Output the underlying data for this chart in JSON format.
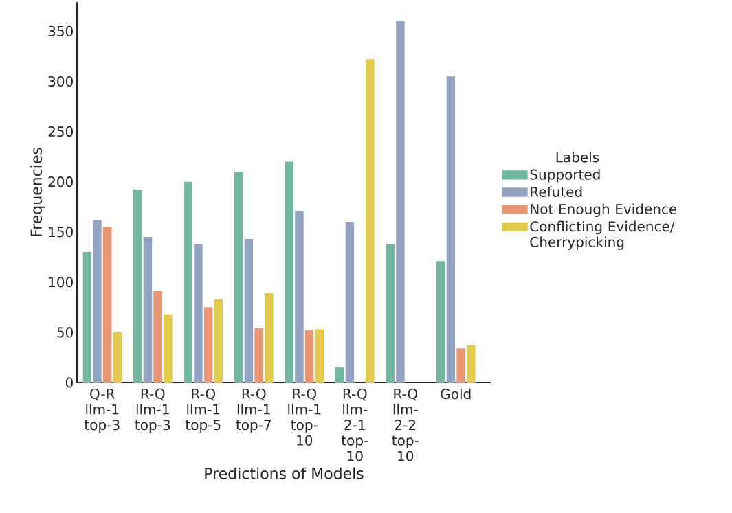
{
  "chart_data": {
    "type": "bar",
    "xlabel": "Predictions of Models",
    "ylabel": "Frequencies",
    "legend_title": "Labels",
    "legend": "right",
    "categories": [
      "Q-R llm-1 top-3",
      "R-Q llm-1 top-3",
      "R-Q llm-1 top-5",
      "R-Q llm-1 top-7",
      "R-Q llm-1 top-10",
      "R-Q llm-2-1 top-10",
      "R-Q llm-2-2 top-10",
      "Gold"
    ],
    "series": [
      {
        "name": "Supported",
        "color": "#72b6a1",
        "values": [
          130,
          192,
          200,
          210,
          220,
          15,
          138,
          121
        ]
      },
      {
        "name": "Refuted",
        "color": "#95a3c3",
        "values": [
          162,
          145,
          138,
          143,
          171,
          160,
          360,
          305
        ]
      },
      {
        "name": "Not Enough Evidence",
        "color": "#e99675",
        "values": [
          155,
          91,
          75,
          54,
          52,
          0,
          0,
          34
        ]
      },
      {
        "name": "Conflicting Evidence/ Cherrypicking",
        "color": "#e2c94c",
        "values": [
          50,
          68,
          83,
          89,
          53,
          322,
          0,
          37
        ]
      }
    ],
    "ylim": [
      0,
      379
    ],
    "yticks": [
      0,
      50,
      100,
      150,
      200,
      250,
      300,
      350
    ],
    "grid": false
  }
}
